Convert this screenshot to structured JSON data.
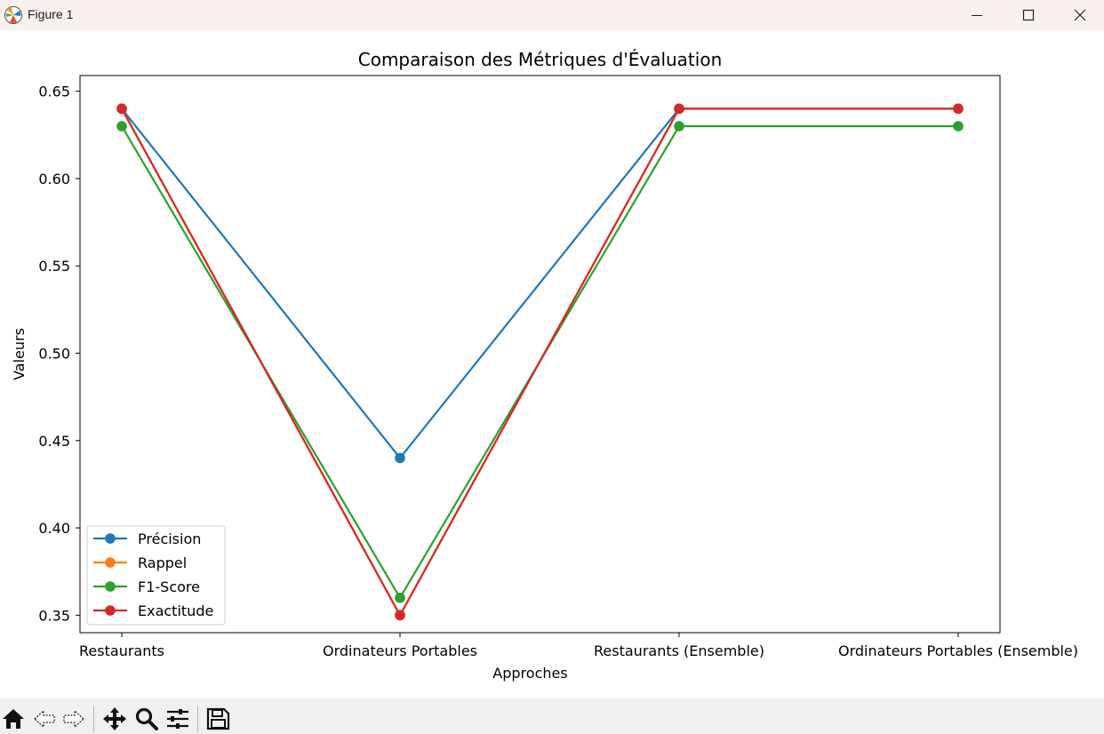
{
  "window": {
    "title": "Figure 1"
  },
  "toolbar": {
    "buttons": [
      "home-icon",
      "back-arrow-icon",
      "forward-arrow-icon",
      "pan-icon",
      "zoom-icon",
      "configure-subplots-icon",
      "save-icon"
    ]
  },
  "chart_data": {
    "type": "line",
    "title": "Comparaison des Métriques d'Évaluation",
    "xlabel": "Approches",
    "ylabel": "Valeurs",
    "categories": [
      "Restaurants",
      "Ordinateurs Portables",
      "Restaurants (Ensemble)",
      "Ordinateurs Portables (Ensemble)"
    ],
    "ylim": [
      0.34,
      0.659
    ],
    "yticks": [
      0.35,
      0.4,
      0.45,
      0.5,
      0.55,
      0.6,
      0.65
    ],
    "ytick_labels": [
      "0.35",
      "0.40",
      "0.45",
      "0.50",
      "0.55",
      "0.60",
      "0.65"
    ],
    "grid": false,
    "legend_position": "lower-left",
    "series": [
      {
        "name": "Précision",
        "color": "#1f77b4",
        "values": [
          0.64,
          0.44,
          0.64,
          0.64
        ]
      },
      {
        "name": "Rappel",
        "color": "#ff7f0e",
        "values": [
          0.64,
          0.35,
          0.64,
          0.64
        ]
      },
      {
        "name": "F1-Score",
        "color": "#2ca02c",
        "values": [
          0.63,
          0.36,
          0.63,
          0.63
        ]
      },
      {
        "name": "Exactitude",
        "color": "#d62728",
        "values": [
          0.64,
          0.35,
          0.64,
          0.64
        ]
      }
    ]
  }
}
